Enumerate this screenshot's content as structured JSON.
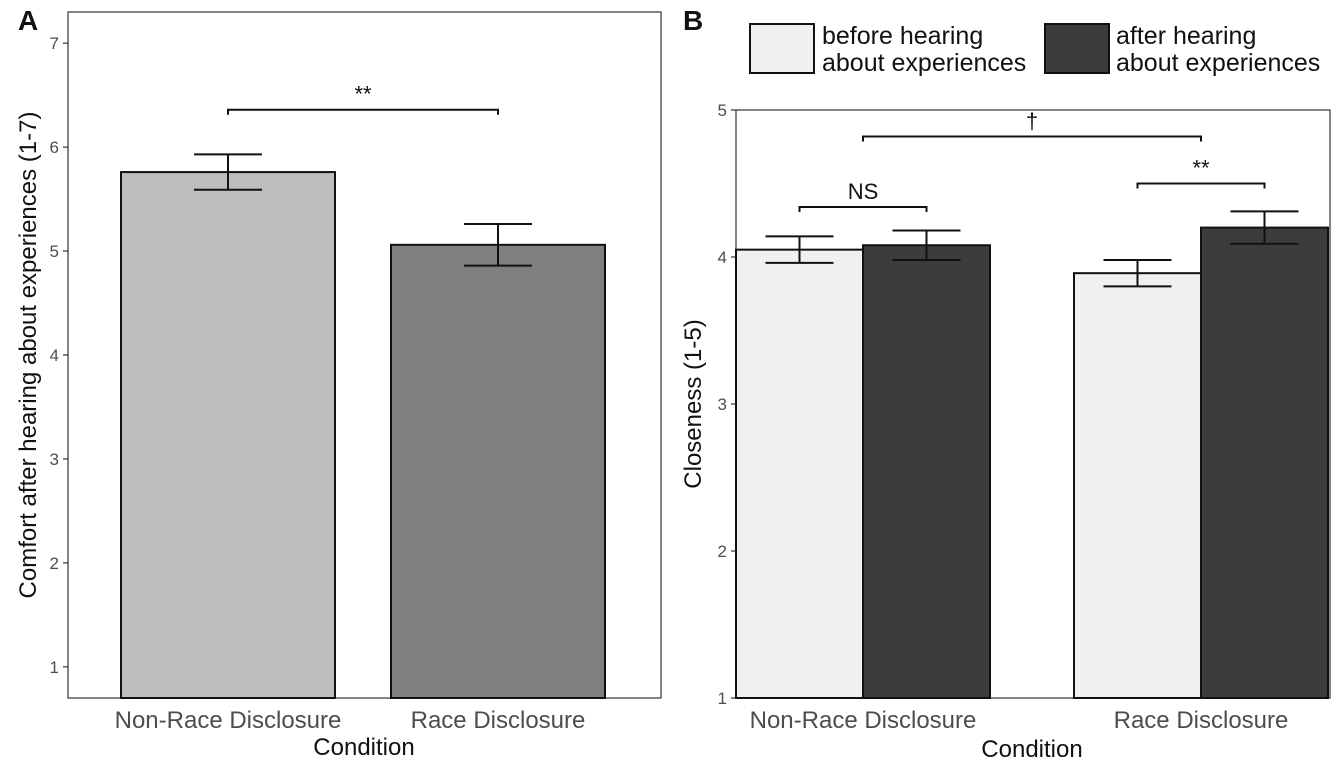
{
  "chart_data": [
    {
      "panel": "A",
      "type": "bar",
      "xlabel": "Condition",
      "ylabel": "Comfort after hearing about experiences (1-7)",
      "ylim": [
        0.7,
        7.3
      ],
      "yticks": [
        1,
        2,
        3,
        4,
        5,
        6,
        7
      ],
      "categories": [
        "Non-Race Disclosure",
        "Race Disclosure"
      ],
      "values": [
        5.76,
        5.06
      ],
      "errors": [
        0.17,
        0.2
      ],
      "colors": [
        "#bdbdbd",
        "#7f7f7f"
      ],
      "grid": false,
      "annotations": [
        {
          "text": "**",
          "from": 0,
          "to": 1,
          "y": 6.36
        }
      ]
    },
    {
      "panel": "B",
      "type": "bar",
      "xlabel": "Condition",
      "ylabel": "Closeness (1-5)",
      "ylim": [
        1.0,
        5.0
      ],
      "yticks": [
        1,
        2,
        3,
        4,
        5
      ],
      "categories": [
        "Non-Race Disclosure",
        "Race Disclosure"
      ],
      "series": [
        {
          "name": "before hearing about experiences",
          "name_lines": [
            "before hearing",
            "about experiences"
          ],
          "values": [
            4.05,
            3.89
          ],
          "errors": [
            0.09,
            0.09
          ],
          "color": "#f0f0f0"
        },
        {
          "name": "after hearing about experiences",
          "name_lines": [
            "after hearing",
            "about experiences"
          ],
          "values": [
            4.08,
            4.2
          ],
          "errors": [
            0.1,
            0.11
          ],
          "color": "#3c3c3c"
        }
      ],
      "legend": "top",
      "grid": false,
      "annotations": [
        {
          "text": "NS",
          "group": 0,
          "y": 4.34
        },
        {
          "text": "**",
          "group": 1,
          "y": 4.5
        },
        {
          "text": "†",
          "between_groups": true,
          "y": 4.82
        }
      ]
    }
  ]
}
